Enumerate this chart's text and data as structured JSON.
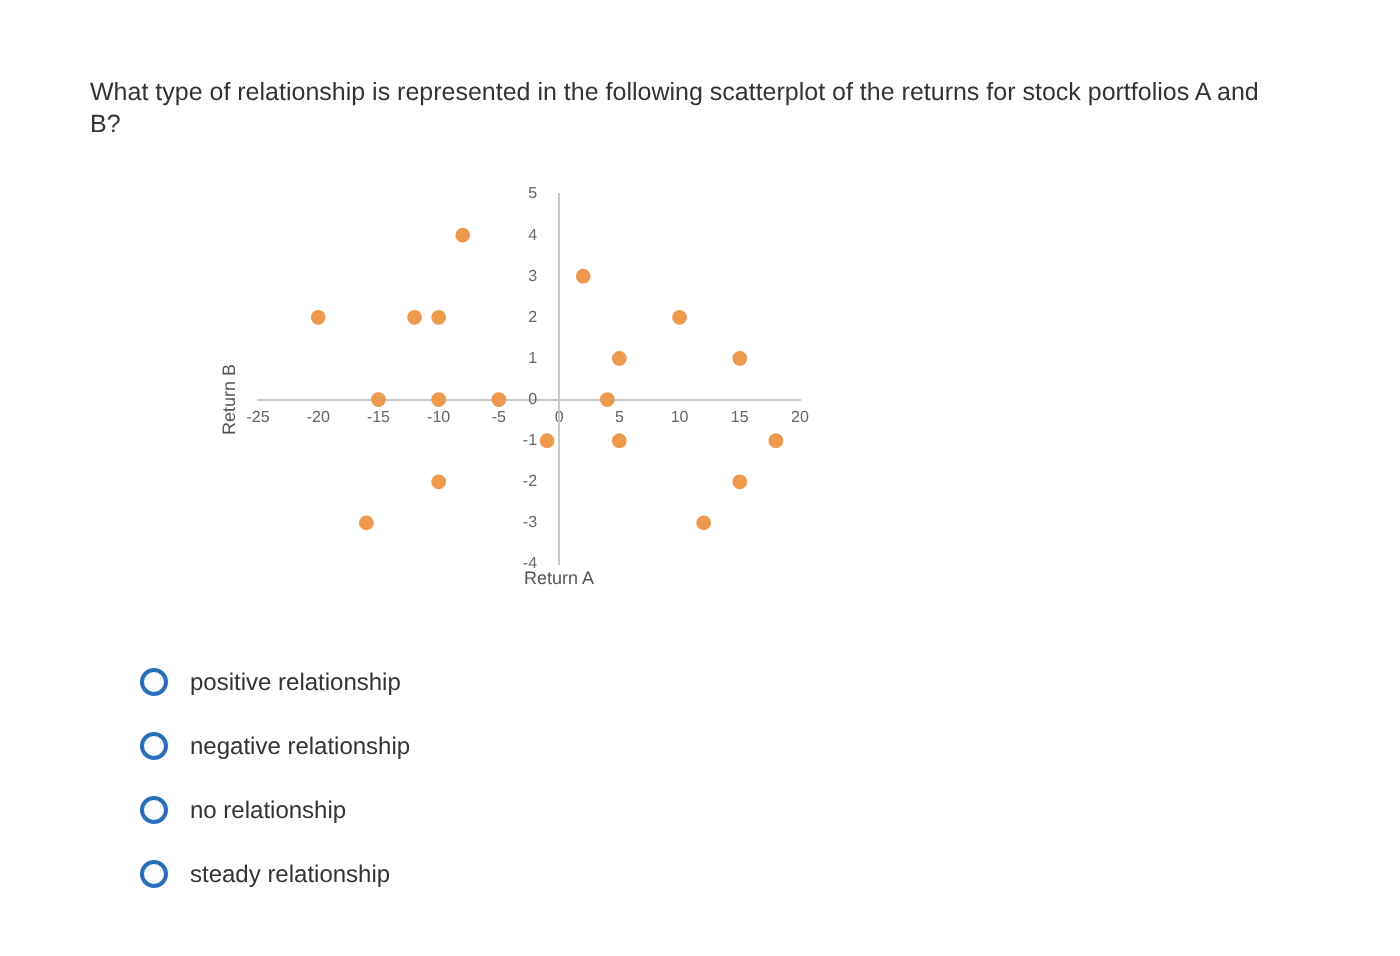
{
  "chart_data": {
    "type": "scatter",
    "title": "What type of relationship is represented in the following scatterplot of the returns for stock portfolios A and B?",
    "xlabel": "Return A",
    "ylabel": "Return B",
    "series": [
      {
        "color": "#ed9a4f",
        "x": [
          -20,
          -12,
          -10,
          -8,
          -15,
          -10,
          -5,
          -10,
          -16,
          2,
          10,
          5,
          15,
          4,
          -1,
          5,
          18,
          15,
          12
        ],
        "values": [
          2,
          2,
          2,
          4,
          0,
          0,
          0,
          -2,
          -3,
          3,
          2,
          1,
          1,
          0,
          -1,
          -1,
          -1,
          -2,
          -3
        ]
      }
    ],
    "xlim": [
      -25,
      20
    ],
    "xticks": [
      -25,
      -20,
      -15,
      -10,
      -5,
      0,
      5,
      10,
      15,
      20
    ],
    "ylim": [
      -4,
      5
    ],
    "yticks": [
      -4,
      -3,
      -2,
      -1,
      0,
      1,
      2,
      3,
      4,
      5
    ],
    "marker": "circle",
    "grid": false,
    "legend": false,
    "annotations": [
      "positive relationship",
      "negative relationship",
      "no relationship",
      "steady relationship"
    ]
  }
}
